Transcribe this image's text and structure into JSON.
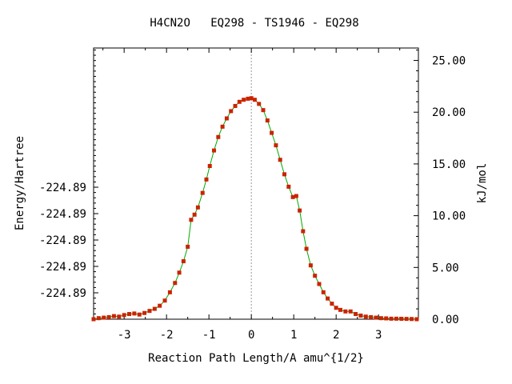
{
  "chart_data": {
    "type": "line",
    "title": "H4CN2O   EQ298 - TS1946 - EQ298",
    "xlabel": "Reaction Path Length/A amu^{1/2}",
    "ylabel": "Energy/Hartree",
    "y2label": "kJ/mol",
    "x_ticks": [
      {
        "value": -3,
        "label": "-3"
      },
      {
        "value": -2,
        "label": "-2"
      },
      {
        "value": -1,
        "label": "-1"
      },
      {
        "value": 0,
        "label": "0"
      },
      {
        "value": 1,
        "label": "1"
      },
      {
        "value": 2,
        "label": "2"
      },
      {
        "value": 3,
        "label": "3"
      }
    ],
    "y_left_ticks": [
      {
        "value": 2.55,
        "label": "-224.89"
      },
      {
        "value": 5.1,
        "label": "-224.89"
      },
      {
        "value": 7.65,
        "label": "-224.89"
      },
      {
        "value": 10.2,
        "label": "-224.89"
      },
      {
        "value": 12.75,
        "label": "-224.89"
      }
    ],
    "y_right_ticks": [
      {
        "value": 0,
        "label": "0.00"
      },
      {
        "value": 5,
        "label": "5.00"
      },
      {
        "value": 10,
        "label": "10.00"
      },
      {
        "value": 15,
        "label": "15.00"
      },
      {
        "value": 20,
        "label": "20.00"
      },
      {
        "value": 25,
        "label": "25.00"
      }
    ],
    "xlim": [
      -3.72,
      3.94
    ],
    "ylim": [
      0,
      26.2
    ],
    "grid": false,
    "ts_marker_x": 0,
    "colors": {
      "line": "#00aa00",
      "points": "#cc2200",
      "ts_line": "#999999"
    },
    "series": [
      {
        "x": [
          -3.72,
          -3.6,
          -3.48,
          -3.36,
          -3.24,
          -3.12,
          -3.0,
          -2.88,
          -2.76,
          -2.64,
          -2.52,
          -2.4,
          -2.28,
          -2.16,
          -2.04,
          -1.92,
          -1.8,
          -1.7,
          -1.6,
          -1.5,
          -1.42,
          -1.34,
          -1.26,
          -1.15,
          -1.06,
          -0.98,
          -0.88,
          -0.78,
          -0.68,
          -0.58,
          -0.48,
          -0.38,
          -0.28,
          -0.18,
          -0.08,
          0.0,
          0.08,
          0.18,
          0.28,
          0.38,
          0.48,
          0.58,
          0.68,
          0.78,
          0.88,
          0.98,
          1.06,
          1.14,
          1.22,
          1.3,
          1.4,
          1.5,
          1.6,
          1.7,
          1.8,
          1.9,
          2.0,
          2.1,
          2.22,
          2.34,
          2.46,
          2.58,
          2.7,
          2.82,
          2.94,
          3.06,
          3.18,
          3.3,
          3.42,
          3.54,
          3.66,
          3.78,
          3.9
        ],
        "y": [
          0.0,
          0.1,
          0.15,
          0.2,
          0.3,
          0.25,
          0.4,
          0.5,
          0.55,
          0.45,
          0.6,
          0.8,
          1.0,
          1.3,
          1.8,
          2.6,
          3.5,
          4.5,
          5.6,
          7.0,
          9.6,
          10.1,
          10.8,
          12.2,
          13.5,
          14.8,
          16.3,
          17.6,
          18.6,
          19.4,
          20.1,
          20.6,
          21.0,
          21.2,
          21.3,
          21.35,
          21.2,
          20.8,
          20.2,
          19.2,
          18.0,
          16.8,
          15.4,
          14.0,
          12.8,
          11.8,
          11.9,
          10.5,
          8.5,
          6.8,
          5.2,
          4.2,
          3.4,
          2.6,
          2.0,
          1.5,
          1.1,
          0.9,
          0.75,
          0.75,
          0.5,
          0.35,
          0.25,
          0.2,
          0.15,
          0.1,
          0.08,
          0.05,
          0.05,
          0.04,
          0.03,
          0.02,
          0.0
        ]
      }
    ]
  }
}
